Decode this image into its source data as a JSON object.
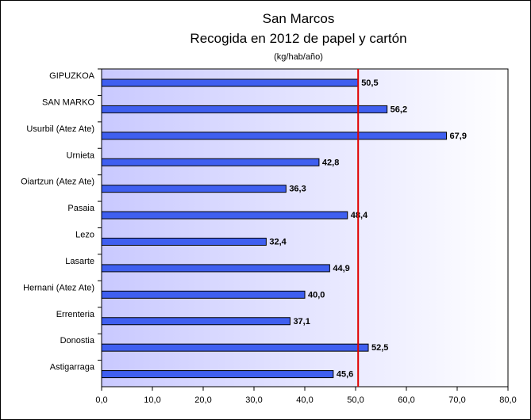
{
  "chart_data": {
    "type": "bar",
    "orientation": "horizontal",
    "title": "San Marcos",
    "subtitle": "Recogida en 2012 de papel y cartón",
    "units": "(kg/hab/año)",
    "categories": [
      "GIPUZKOA",
      "SAN MARKO",
      "Usurbil (Atez Ate)",
      "Urnieta",
      "Oiartzun (Atez Ate)",
      "Pasaia",
      "Lezo",
      "Lasarte",
      "Hernani (Atez Ate)",
      "Errenteria",
      "Donostia",
      "Astigarraga"
    ],
    "values": [
      50.5,
      56.2,
      67.9,
      42.8,
      36.3,
      48.4,
      32.4,
      44.9,
      40.0,
      37.1,
      52.5,
      45.6
    ],
    "value_labels": [
      "50,5",
      "56,2",
      "67,9",
      "42,8",
      "36,3",
      "48,4",
      "32,4",
      "44,9",
      "40,0",
      "37,1",
      "52,5",
      "45,6"
    ],
    "xlim": [
      0,
      80
    ],
    "xticks": [
      0,
      10,
      20,
      30,
      40,
      50,
      60,
      70,
      80
    ],
    "xtick_labels": [
      "0,0",
      "10,0",
      "20,0",
      "30,0",
      "40,0",
      "50,0",
      "60,0",
      "70,0",
      "80,0"
    ],
    "reference_line": {
      "value": 50.5,
      "color": "#e00000"
    },
    "bar_color": "#3f5ff0",
    "bar_border_color": "#000000",
    "plot_background": "gradient violet to white",
    "gradient_start": "#c9c9ff",
    "gradient_end": "#ffffff",
    "grid": false,
    "legend": "none"
  }
}
